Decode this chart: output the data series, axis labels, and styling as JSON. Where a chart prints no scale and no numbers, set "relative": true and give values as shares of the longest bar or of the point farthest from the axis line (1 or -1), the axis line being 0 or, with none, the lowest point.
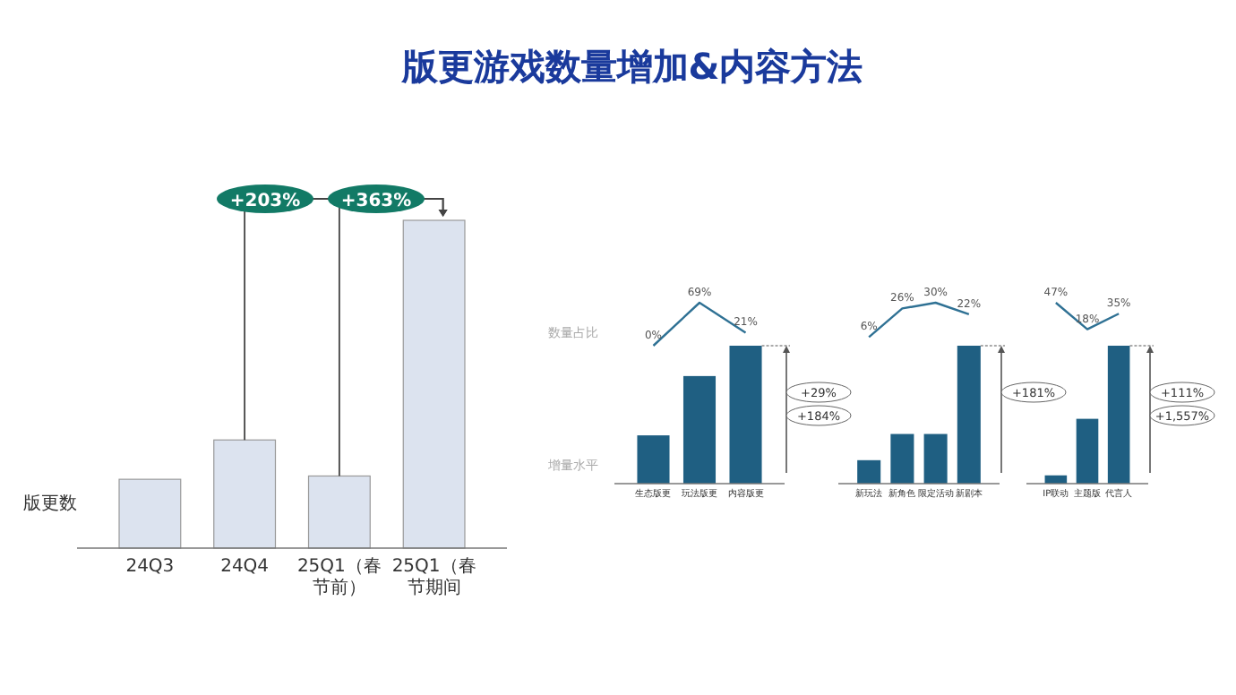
{
  "chart_data": [
    {
      "type": "bar",
      "title": "版更游戏数量增加&内容方法",
      "ylabel": "版更数",
      "categories": [
        "24Q3",
        "24Q4",
        "25Q1（春节前）",
        "25Q1（春节期间"
      ],
      "values": [
        0.21,
        0.33,
        0.22,
        1
      ],
      "color": "#dce3ef",
      "relative": true,
      "annotations": [
        "+203%",
        "+363%"
      ]
    },
    {
      "type": "line",
      "ylabel": "数量占比",
      "categories": [
        null,
        null,
        null
      ],
      "values": [
        0,
        69,
        21
      ],
      "value_labels": [
        "0%",
        "69%",
        "21%"
      ],
      "color": "#2f7194"
    },
    {
      "type": "bar",
      "ylabel": "增量水平",
      "categories": [
        "生态版更",
        "玩法版更",
        "内容版更"
      ],
      "values": [
        0.35,
        0.78,
        1
      ],
      "color": "#1f5f82",
      "relative": true,
      "annotations": [
        "+29%",
        "+184%"
      ]
    },
    {
      "type": "line",
      "categories": [
        null,
        null,
        null,
        null
      ],
      "values": [
        6,
        26,
        30,
        22
      ],
      "value_labels": [
        "6%",
        "26%",
        "30%",
        "22%"
      ],
      "color": "#2f7194"
    },
    {
      "type": "bar",
      "categories": [
        "新玩法",
        "新角色",
        "限定活动",
        "新剧本"
      ],
      "values": [
        0.17,
        0.36,
        0.36,
        1
      ],
      "color": "#1f5f82",
      "relative": true,
      "annotations": [
        "+181%"
      ]
    },
    {
      "type": "line",
      "categories": [
        null,
        null,
        null
      ],
      "values": [
        47,
        18,
        35
      ],
      "value_labels": [
        "47%",
        "18%",
        "35%"
      ],
      "color": "#2f7194"
    },
    {
      "type": "bar",
      "categories": [
        "IP联动",
        "主题版",
        "代言人"
      ],
      "values": [
        0.06,
        0.47,
        1
      ],
      "color": "#1f5f82",
      "relative": true,
      "annotations": [
        "+111%",
        "+1,557%"
      ]
    }
  ]
}
